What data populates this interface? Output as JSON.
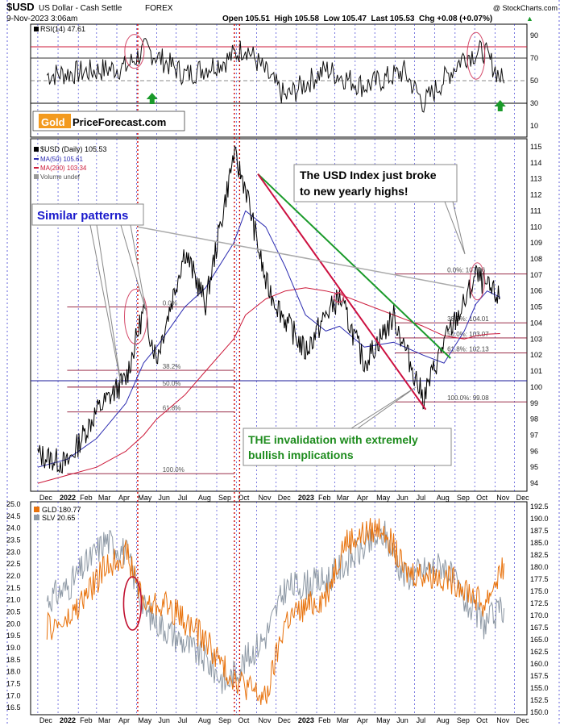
{
  "header": {
    "symbol": "$USD",
    "name": "US Dollar - Cash Settle",
    "exchange": "FOREX",
    "copyright": "@ StockCharts.com",
    "date": "9-Nov-2023 3:06am",
    "ohlc_text": "Open 105.51  High 105.58  Low 105.47  Last 105.53  Chg +0.08 (+0.07%)",
    "up_arrow": "▲"
  },
  "logo": {
    "part1": "Gold",
    "part2": "PriceForecast.com"
  },
  "x_axis": {
    "months": [
      "Dec",
      "2022",
      "Feb",
      "Mar",
      "Apr",
      "May",
      "Jun",
      "Jul",
      "Aug",
      "Sep",
      "Oct",
      "Nov",
      "Dec",
      "2023",
      "Feb",
      "Mar",
      "Apr",
      "May",
      "Jun",
      "Jul",
      "Aug",
      "Sep",
      "Oct",
      "Nov",
      "Dec"
    ]
  },
  "rsi_panel": {
    "legend": "RSI(14) 47.61",
    "ticks": [
      "90",
      "70",
      "50",
      "30",
      "10"
    ],
    "levels": [
      80,
      70,
      50,
      30
    ]
  },
  "usd_panel": {
    "legend": [
      "$USD (Daily) 105.53",
      "MA(50) 105.61",
      "MA(200) 103.34",
      "Volume undef"
    ],
    "ticks": [
      "115",
      "114",
      "113",
      "112",
      "111",
      "110",
      "109",
      "108",
      "107",
      "106",
      "105",
      "104",
      "103",
      "102",
      "101",
      "100",
      "99",
      "98",
      "97",
      "96",
      "95",
      "94"
    ],
    "fib_recent": [
      "0.0%: 107.06",
      "38.2%: 104.01",
      "50.0%: 103.07",
      "61.8%: 102.13",
      "100.0%: 99.08"
    ],
    "fib_old": [
      "38.2%",
      "50.0%",
      "61.8%",
      "100.0%"
    ],
    "fib_old_top": "0.0%",
    "annotations": {
      "similar": "Similar patterns",
      "broke_line1": "The USD Index just broke",
      "broke_line2": "to new yearly highs!",
      "invalid_line1": "THE invalidation with extremely",
      "invalid_line2": "bullish implications"
    }
  },
  "metals_panel": {
    "legend": [
      "GLD 180.77",
      "SLV 20.65"
    ],
    "left_ticks": [
      "25.0",
      "24.5",
      "24.0",
      "23.5",
      "23.0",
      "22.5",
      "22.0",
      "21.5",
      "21.0",
      "20.5",
      "20.0",
      "19.5",
      "19.0",
      "18.5",
      "18.0",
      "17.5",
      "17.0",
      "16.5"
    ],
    "right_ticks": [
      "192.5",
      "190.0",
      "187.5",
      "185.0",
      "182.5",
      "180.0",
      "177.5",
      "175.0",
      "172.5",
      "170.0",
      "167.5",
      "165.0",
      "162.5",
      "160.0",
      "157.5",
      "155.0",
      "152.5",
      "150.0"
    ]
  },
  "colors": {
    "price": "#000000",
    "ma50": "#2b2bb0",
    "ma200": "#cc1a3a",
    "gld": "#e8720c",
    "slv": "#8e99a5",
    "grid_blue": "#2222cc",
    "grid_red": "#cc0000",
    "green_line": "#1a9a2a",
    "crimson_line": "#cc1040",
    "annotation_blue": "#1a1acc",
    "annotation_green": "#1e8c1e"
  },
  "chart_data": [
    {
      "type": "line",
      "panel": "RSI(14)",
      "ylim": [
        0,
        100
      ],
      "x": [
        "2021-12",
        "2022-02",
        "2022-04",
        "2022-05",
        "2022-07",
        "2022-09",
        "2022-10",
        "2022-12",
        "2023-02",
        "2023-04",
        "2023-06",
        "2023-07",
        "2023-09",
        "2023-10",
        "2023-11"
      ],
      "series": [
        {
          "name": "RSI(14)",
          "values": [
            55,
            58,
            62,
            78,
            55,
            68,
            80,
            35,
            60,
            45,
            58,
            30,
            72,
            76,
            47.61
          ]
        }
      ]
    },
    {
      "type": "line",
      "panel": "$USD (Daily)",
      "ylim": [
        93.5,
        115.5
      ],
      "x": [
        "2021-12-01",
        "2022-01-15",
        "2022-03-01",
        "2022-04-15",
        "2022-05-12",
        "2022-06-01",
        "2022-07-14",
        "2022-08-15",
        "2022-09-27",
        "2022-10-15",
        "2022-11-15",
        "2022-12-15",
        "2023-01-15",
        "2023-02-15",
        "2023-03-08",
        "2023-04-15",
        "2023-05-30",
        "2023-07-14",
        "2023-08-15",
        "2023-09-15",
        "2023-10-03",
        "2023-10-20",
        "2023-11-09"
      ],
      "series": [
        {
          "name": "$USD",
          "values": [
            95.8,
            95.2,
            98.5,
            100.5,
            104.8,
            101.8,
            108.5,
            105.2,
            114.5,
            112.5,
            106.5,
            104.2,
            102.2,
            104.5,
            105.6,
            101.5,
            104.4,
            99.3,
            102.8,
            105.2,
            107.0,
            106.2,
            105.53
          ]
        },
        {
          "name": "MA(50)",
          "values": [
            95.0,
            95.5,
            96.8,
            99.0,
            101.5,
            102.5,
            105.0,
            106.2,
            109.0,
            111.0,
            110.0,
            107.5,
            104.5,
            103.5,
            103.8,
            102.5,
            102.8,
            102.0,
            101.5,
            103.5,
            105.2,
            106.0,
            105.61
          ]
        },
        {
          "name": "MA(200)",
          "values": [
            94.0,
            94.5,
            95.0,
            96.0,
            97.0,
            98.0,
            99.5,
            101.0,
            103.0,
            104.5,
            105.5,
            106.0,
            106.2,
            106.0,
            105.8,
            105.2,
            104.5,
            103.8,
            103.2,
            103.0,
            103.2,
            103.3,
            103.34
          ]
        }
      ],
      "fib_levels": [
        {
          "label": "0.0%",
          "value": 107.06
        },
        {
          "label": "38.2%",
          "value": 104.01
        },
        {
          "label": "50.0%",
          "value": 103.07
        },
        {
          "label": "61.8%",
          "value": 102.13
        },
        {
          "label": "100.0%",
          "value": 99.08
        }
      ]
    },
    {
      "type": "line",
      "panel": "GLD / SLV",
      "ylim_left": [
        16.2,
        25.1
      ],
      "ylim_right": [
        149.5,
        193.5
      ],
      "x": [
        "2021-12",
        "2022-01",
        "2022-03",
        "2022-04",
        "2022-05",
        "2022-06",
        "2022-08",
        "2022-09",
        "2022-11",
        "2022-12",
        "2023-02",
        "2023-03",
        "2023-05",
        "2023-06",
        "2023-08",
        "2023-09",
        "2023-10",
        "2023-11"
      ],
      "series": [
        {
          "name": "GLD",
          "values": [
            167.5,
            168.5,
            180.0,
            183.0,
            172.0,
            172.5,
            165.0,
            158.5,
            152.5,
            169.0,
            174.0,
            185.0,
            188.5,
            179.0,
            178.0,
            176.0,
            172.0,
            180.77
          ]
        },
        {
          "name": "SLV",
          "values": [
            21.0,
            21.5,
            23.5,
            23.0,
            20.5,
            19.8,
            18.5,
            17.5,
            19.5,
            21.5,
            21.8,
            22.5,
            23.8,
            22.0,
            22.5,
            21.0,
            20.0,
            20.65
          ]
        }
      ]
    }
  ]
}
